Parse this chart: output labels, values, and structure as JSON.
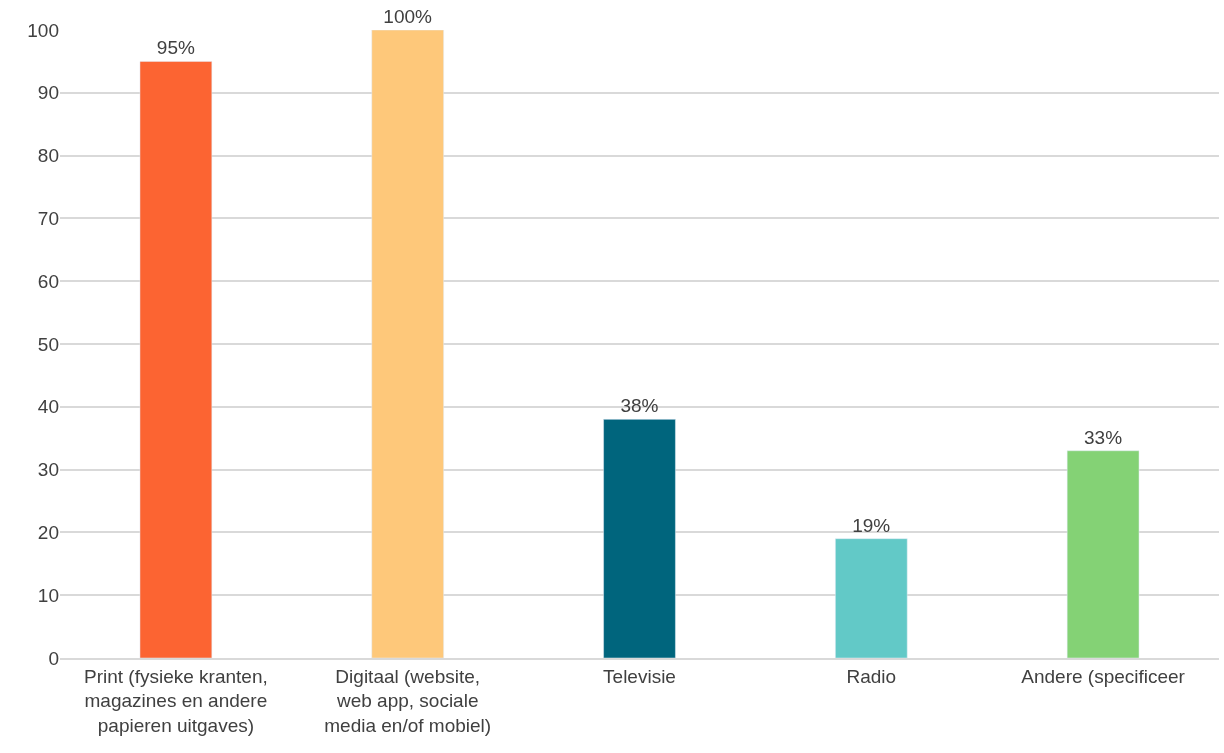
{
  "chart_data": {
    "type": "bar",
    "categories": [
      "Print (fysieke kranten,\nmagazines en andere\npapieren uitgaves)",
      "Digitaal (website,\nweb app, sociale\nmedia en/of mobiel)",
      "Televisie",
      "Radio",
      "Andere (specificeer"
    ],
    "values": [
      95,
      100,
      38,
      19,
      33
    ],
    "colors": [
      "#fc6432",
      "#fec87a",
      "#00657d",
      "#62c9c7",
      "#84d275"
    ],
    "value_labels": [
      "95%",
      "100%",
      "38%",
      "19%",
      "33%"
    ],
    "ylim": [
      0,
      100
    ],
    "yticks": [
      0,
      10,
      20,
      30,
      40,
      50,
      60,
      70,
      80,
      90,
      100
    ],
    "grid": "y",
    "legend": false
  }
}
